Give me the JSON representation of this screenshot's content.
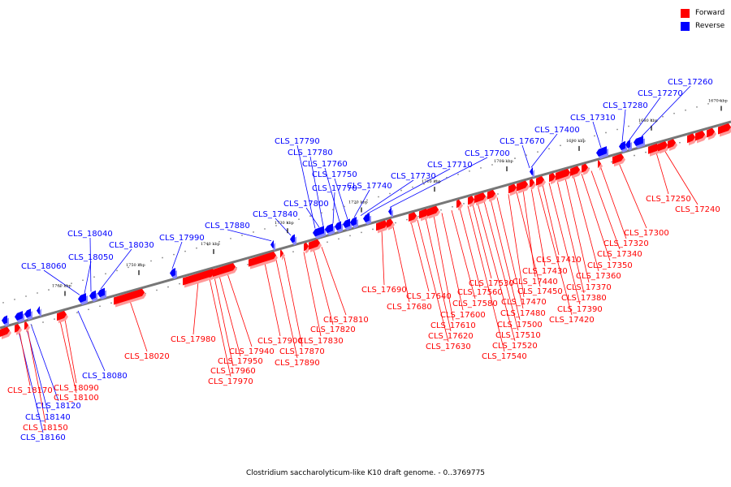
{
  "legend": {
    "forward_label": "Forward",
    "reverse_label": "Reverse",
    "forward_color": "#ff0000",
    "reverse_color": "#0000ff"
  },
  "caption": "Clostridium saccharolyticum-like K10 draft genome. - 0..3769775",
  "tick_labels": [
    "1670 kbp",
    "1680 kbp",
    "1690 kbp",
    "1700 kbp",
    "1710 kbp",
    "1720 kbp",
    "1730 kbp",
    "1740 kbp",
    "1750 kbp",
    "1760 kbp"
  ],
  "genes_reverse": [
    "CLS_17260",
    "CLS_17270",
    "CLS_17280",
    "CLS_17310",
    "CLS_17400",
    "CLS_17670",
    "CLS_17700",
    "CLS_17710",
    "CLS_17730",
    "CLS_17740",
    "CLS_17750",
    "CLS_17760",
    "CLS_17770",
    "CLS_17780",
    "CLS_17790",
    "CLS_17800",
    "CLS_17840",
    "CLS_17880",
    "CLS_17990",
    "CLS_18030",
    "CLS_18040",
    "CLS_18050",
    "CLS_18060",
    "CLS_18080",
    "CLS_18120",
    "CLS_18140",
    "CLS_18160"
  ],
  "genes_forward": [
    "CLS_17240",
    "CLS_17250",
    "CLS_17300",
    "CLS_17320",
    "CLS_17340",
    "CLS_17350",
    "CLS_17360",
    "CLS_17370",
    "CLS_17380",
    "CLS_17390",
    "CLS_17410",
    "CLS_17420",
    "CLS_17430",
    "CLS_17440",
    "CLS_17450",
    "CLS_17470",
    "CLS_17480",
    "CLS_17500",
    "CLS_17510",
    "CLS_17520",
    "CLS_17530",
    "CLS_17540",
    "CLS_17560",
    "CLS_17580",
    "CLS_17600",
    "CLS_17610",
    "CLS_17620",
    "CLS_17630",
    "CLS_17640",
    "CLS_17680",
    "CLS_17690",
    "CLS_17810",
    "CLS_17820",
    "CLS_17830",
    "CLS_17870",
    "CLS_17890",
    "CLS_17900",
    "CLS_17940",
    "CLS_17950",
    "CLS_17960",
    "CLS_17970",
    "CLS_17980",
    "CLS_18020",
    "CLS_18090",
    "CLS_18100",
    "CLS_18150",
    "CLS_18170"
  ]
}
